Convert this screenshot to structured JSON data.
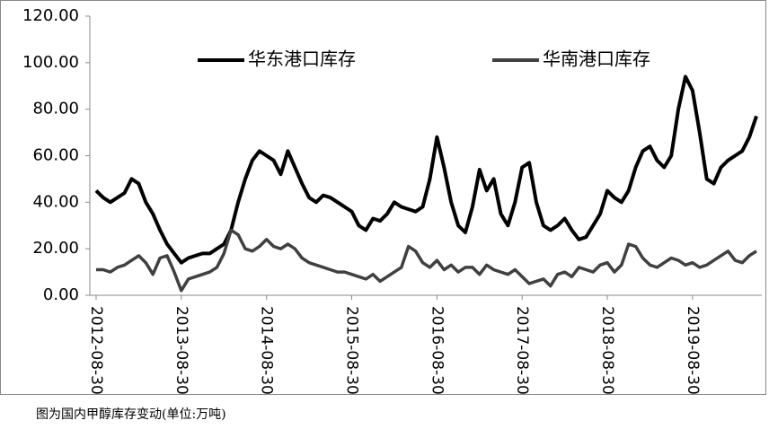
{
  "chart_data": {
    "type": "line",
    "caption": "图为国内甲醇库存变动(单位:万吨)",
    "x": [
      "2012-08",
      "2012-09",
      "2012-10",
      "2012-11",
      "2012-12",
      "2013-01",
      "2013-02",
      "2013-03",
      "2013-04",
      "2013-05",
      "2013-06",
      "2013-07",
      "2013-08",
      "2013-09",
      "2013-10",
      "2013-11",
      "2013-12",
      "2014-01",
      "2014-02",
      "2014-03",
      "2014-04",
      "2014-05",
      "2014-06",
      "2014-07",
      "2014-08",
      "2014-09",
      "2014-10",
      "2014-11",
      "2014-12",
      "2015-01",
      "2015-02",
      "2015-03",
      "2015-04",
      "2015-05",
      "2015-06",
      "2015-07",
      "2015-08",
      "2015-09",
      "2015-10",
      "2015-11",
      "2015-12",
      "2016-01",
      "2016-02",
      "2016-03",
      "2016-04",
      "2016-05",
      "2016-06",
      "2016-07",
      "2016-08",
      "2016-09",
      "2016-10",
      "2016-11",
      "2016-12",
      "2017-01",
      "2017-02",
      "2017-03",
      "2017-04",
      "2017-05",
      "2017-06",
      "2017-07",
      "2017-08",
      "2017-09",
      "2017-10",
      "2017-11",
      "2017-12",
      "2018-01",
      "2018-02",
      "2018-03",
      "2018-04",
      "2018-05",
      "2018-06",
      "2018-07",
      "2018-08",
      "2018-09",
      "2018-10",
      "2018-11",
      "2018-12",
      "2019-01",
      "2019-02",
      "2019-03",
      "2019-04",
      "2019-05",
      "2019-06",
      "2019-07",
      "2019-08",
      "2019-09",
      "2019-10",
      "2019-11",
      "2019-12",
      "2020-01",
      "2020-02",
      "2020-03",
      "2020-04",
      "2020-05"
    ],
    "series": [
      {
        "name": "华东港口库存",
        "color": "#000000",
        "values": [
          45,
          42,
          40,
          42,
          44,
          50,
          48,
          40,
          35,
          28,
          22,
          18,
          14,
          16,
          17,
          18,
          18,
          20,
          22,
          28,
          40,
          50,
          58,
          62,
          60,
          58,
          52,
          62,
          55,
          48,
          42,
          40,
          43,
          42,
          40,
          38,
          36,
          30,
          28,
          33,
          32,
          35,
          40,
          38,
          37,
          36,
          38,
          50,
          68,
          55,
          40,
          30,
          27,
          38,
          54,
          45,
          50,
          35,
          30,
          40,
          55,
          57,
          40,
          30,
          28,
          30,
          33,
          28,
          24,
          25,
          30,
          35,
          45,
          42,
          40,
          45,
          55,
          62,
          64,
          58,
          55,
          60,
          80,
          94,
          88,
          70,
          50,
          48,
          55,
          58,
          60,
          62,
          68,
          77
        ]
      },
      {
        "name": "华南港口库存",
        "color": "#404040",
        "values": [
          11,
          11,
          10,
          12,
          13,
          15,
          17,
          14,
          9,
          16,
          17,
          10,
          2,
          7,
          8,
          9,
          10,
          12,
          18,
          28,
          26,
          20,
          19,
          21,
          24,
          21,
          20,
          22,
          20,
          16,
          14,
          13,
          12,
          11,
          10,
          10,
          9,
          8,
          7,
          9,
          6,
          8,
          10,
          12,
          21,
          19,
          14,
          12,
          15,
          11,
          13,
          10,
          12,
          12,
          9,
          13,
          11,
          10,
          9,
          11,
          8,
          5,
          6,
          7,
          4,
          9,
          10,
          8,
          12,
          11,
          10,
          13,
          14,
          10,
          13,
          22,
          21,
          16,
          13,
          12,
          14,
          16,
          15,
          13,
          14,
          12,
          13,
          15,
          17,
          19,
          15,
          14,
          17,
          19
        ]
      }
    ],
    "ylim": [
      0,
      120
    ],
    "yticks": [
      {
        "value": 0,
        "label": "0.00"
      },
      {
        "value": 20,
        "label": "20.00"
      },
      {
        "value": 40,
        "label": "40.00"
      },
      {
        "value": 60,
        "label": "60.00"
      },
      {
        "value": 80,
        "label": "80.00"
      },
      {
        "value": 100,
        "label": "100.00"
      },
      {
        "value": 120,
        "label": "120.00"
      }
    ],
    "xticks": [
      {
        "value": "2012-08",
        "label": "2012-08-30"
      },
      {
        "value": "2013-08",
        "label": "2013-08-30"
      },
      {
        "value": "2014-08",
        "label": "2014-08-30"
      },
      {
        "value": "2015-08",
        "label": "2015-08-30"
      },
      {
        "value": "2016-08",
        "label": "2016-08-30"
      },
      {
        "value": "2017-08",
        "label": "2017-08-30"
      },
      {
        "value": "2018-08",
        "label": "2018-08-30"
      },
      {
        "value": "2019-08",
        "label": "2019-08-30"
      }
    ]
  }
}
